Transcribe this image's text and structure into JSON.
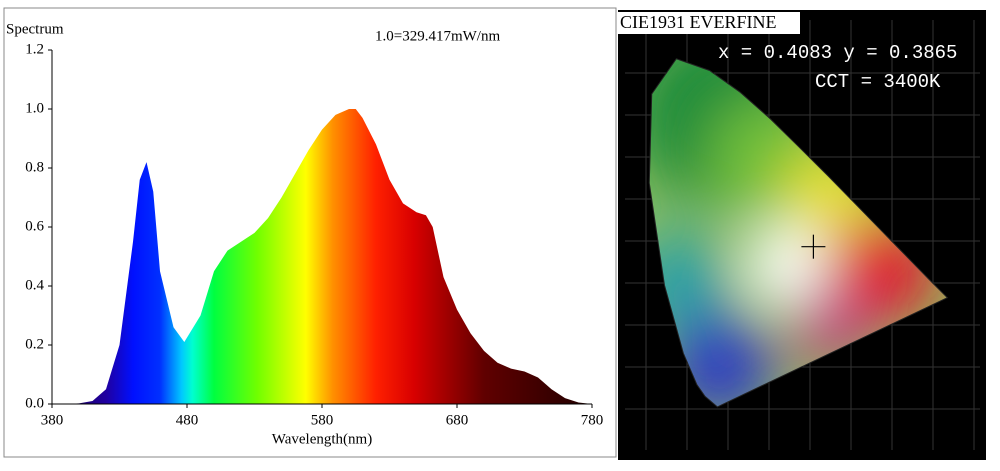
{
  "chart_data": {
    "type": "area",
    "title": "Spectrum",
    "annotation": "1.0=329.417mW/nm",
    "x_label": "Wavelength(nm)",
    "x": [
      380,
      390,
      400,
      410,
      420,
      430,
      440,
      445,
      450,
      455,
      460,
      470,
      478,
      490,
      500,
      510,
      520,
      530,
      540,
      550,
      560,
      570,
      580,
      590,
      600,
      605,
      610,
      620,
      630,
      640,
      650,
      657,
      662,
      670,
      680,
      690,
      700,
      710,
      720,
      730,
      740,
      750,
      760,
      770,
      780
    ],
    "values": [
      0,
      0,
      0.002,
      0.01,
      0.05,
      0.2,
      0.55,
      0.76,
      0.82,
      0.72,
      0.45,
      0.26,
      0.21,
      0.3,
      0.45,
      0.52,
      0.55,
      0.58,
      0.63,
      0.7,
      0.78,
      0.86,
      0.93,
      0.98,
      1.0,
      1.0,
      0.97,
      0.88,
      0.76,
      0.68,
      0.65,
      0.64,
      0.6,
      0.43,
      0.32,
      0.24,
      0.18,
      0.14,
      0.12,
      0.11,
      0.09,
      0.05,
      0.02,
      0.005,
      0
    ],
    "xlim": [
      380,
      780
    ],
    "xticks": [
      380,
      480,
      580,
      680,
      780
    ],
    "ylim": [
      0,
      1.2
    ],
    "yticks": [
      {
        "value": 0,
        "label": "0.0"
      },
      0.2,
      0.4,
      0.6,
      0.8,
      {
        "value": 1,
        "label": "1.0"
      },
      1.2
    ]
  },
  "cie": {
    "title": "CIE1931 EVERFINE",
    "xy_text": "x = 0.4083 y = 0.3865",
    "cct_text": "CCT = 3400K",
    "point": [
      0.4083,
      0.3865
    ]
  }
}
